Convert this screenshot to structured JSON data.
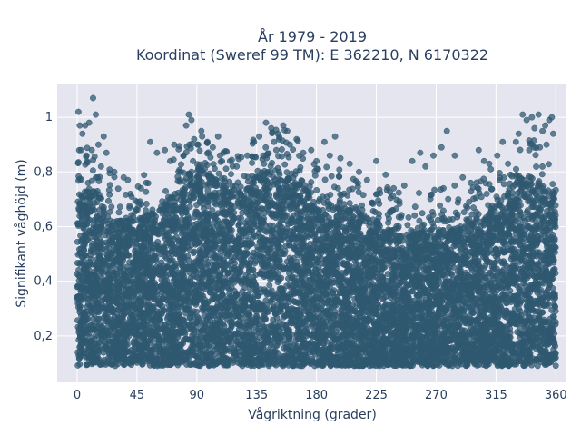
{
  "chart_data": {
    "type": "scatter",
    "title_lines": [
      "År 1979 - 2019",
      "Koordinat (Sweref 99 TM): E 362210, N 6170322"
    ],
    "xlabel": "Vågriktning (grader)",
    "ylabel": "Signifikant våghöjd (m)",
    "xlim": [
      -15,
      368
    ],
    "ylim": [
      0.03,
      1.12
    ],
    "x_ticks": [
      0,
      45,
      90,
      135,
      180,
      225,
      270,
      315,
      360
    ],
    "x_tick_labels": [
      "0",
      "45",
      "90",
      "135",
      "180",
      "225",
      "270",
      "315",
      "360"
    ],
    "y_ticks": [
      0.2,
      0.4,
      0.6,
      0.8,
      1.0
    ],
    "y_tick_labels": [
      "0,2",
      "0,4",
      "0,6",
      "0,8",
      "1"
    ],
    "grid": true,
    "marker_color": "#2f5870",
    "plot_bg": "#e5e5f0",
    "envelope": {
      "x": [
        0,
        10,
        20,
        30,
        45,
        60,
        75,
        85,
        95,
        110,
        125,
        140,
        155,
        170,
        185,
        200,
        215,
        230,
        245,
        260,
        275,
        290,
        305,
        320,
        335,
        345,
        355,
        360
      ],
      "y_top": [
        0.72,
        0.74,
        0.68,
        0.62,
        0.62,
        0.66,
        0.72,
        0.8,
        0.8,
        0.74,
        0.72,
        0.8,
        0.8,
        0.74,
        0.68,
        0.66,
        0.64,
        0.6,
        0.56,
        0.58,
        0.58,
        0.6,
        0.62,
        0.7,
        0.78,
        0.78,
        0.72,
        0.7
      ],
      "y_bottom": 0.09
    },
    "outliers": [
      {
        "x": 1,
        "y": 1.02
      },
      {
        "x": 2,
        "y": 0.97
      },
      {
        "x": 4,
        "y": 0.94
      },
      {
        "x": 6,
        "y": 0.97
      },
      {
        "x": 9,
        "y": 0.98
      },
      {
        "x": 12,
        "y": 1.07
      },
      {
        "x": 14,
        "y": 1.01
      },
      {
        "x": 11,
        "y": 0.88
      },
      {
        "x": 16,
        "y": 0.9
      },
      {
        "x": 18,
        "y": 0.82
      },
      {
        "x": 3,
        "y": 0.88
      },
      {
        "x": 7,
        "y": 0.86
      },
      {
        "x": 22,
        "y": 0.87
      },
      {
        "x": 28,
        "y": 0.8
      },
      {
        "x": 35,
        "y": 0.78
      },
      {
        "x": 40,
        "y": 0.72
      },
      {
        "x": 48,
        "y": 0.74
      },
      {
        "x": 52,
        "y": 0.76
      },
      {
        "x": 55,
        "y": 0.91
      },
      {
        "x": 60,
        "y": 0.87
      },
      {
        "x": 66,
        "y": 0.88
      },
      {
        "x": 70,
        "y": 0.84
      },
      {
        "x": 73,
        "y": 0.9
      },
      {
        "x": 78,
        "y": 0.8
      },
      {
        "x": 80,
        "y": 0.86
      },
      {
        "x": 82,
        "y": 0.97
      },
      {
        "x": 84,
        "y": 1.01
      },
      {
        "x": 86,
        "y": 0.99
      },
      {
        "x": 88,
        "y": 0.92
      },
      {
        "x": 91,
        "y": 0.9
      },
      {
        "x": 94,
        "y": 0.93
      },
      {
        "x": 98,
        "y": 0.91
      },
      {
        "x": 102,
        "y": 0.89
      },
      {
        "x": 106,
        "y": 0.93
      },
      {
        "x": 110,
        "y": 0.87
      },
      {
        "x": 115,
        "y": 0.84
      },
      {
        "x": 120,
        "y": 0.82
      },
      {
        "x": 128,
        "y": 0.86
      },
      {
        "x": 133,
        "y": 0.91
      },
      {
        "x": 137,
        "y": 0.93
      },
      {
        "x": 140,
        "y": 0.86
      },
      {
        "x": 142,
        "y": 0.98
      },
      {
        "x": 146,
        "y": 0.96
      },
      {
        "x": 148,
        "y": 0.91
      },
      {
        "x": 151,
        "y": 0.94
      },
      {
        "x": 155,
        "y": 0.97
      },
      {
        "x": 158,
        "y": 0.95
      },
      {
        "x": 160,
        "y": 0.9
      },
      {
        "x": 165,
        "y": 0.92
      },
      {
        "x": 170,
        "y": 0.87
      },
      {
        "x": 176,
        "y": 0.88
      },
      {
        "x": 180,
        "y": 0.84
      },
      {
        "x": 186,
        "y": 0.91
      },
      {
        "x": 190,
        "y": 0.86
      },
      {
        "x": 194,
        "y": 0.93
      },
      {
        "x": 198,
        "y": 0.85
      },
      {
        "x": 205,
        "y": 0.83
      },
      {
        "x": 212,
        "y": 0.8
      },
      {
        "x": 218,
        "y": 0.77
      },
      {
        "x": 225,
        "y": 0.84
      },
      {
        "x": 232,
        "y": 0.79
      },
      {
        "x": 238,
        "y": 0.74
      },
      {
        "x": 246,
        "y": 0.75
      },
      {
        "x": 252,
        "y": 0.84
      },
      {
        "x": 258,
        "y": 0.87
      },
      {
        "x": 262,
        "y": 0.82
      },
      {
        "x": 268,
        "y": 0.86
      },
      {
        "x": 274,
        "y": 0.89
      },
      {
        "x": 278,
        "y": 0.95
      },
      {
        "x": 284,
        "y": 0.86
      },
      {
        "x": 290,
        "y": 0.78
      },
      {
        "x": 296,
        "y": 0.76
      },
      {
        "x": 302,
        "y": 0.88
      },
      {
        "x": 306,
        "y": 0.84
      },
      {
        "x": 310,
        "y": 0.83
      },
      {
        "x": 316,
        "y": 0.86
      },
      {
        "x": 320,
        "y": 0.91
      },
      {
        "x": 324,
        "y": 0.83
      },
      {
        "x": 330,
        "y": 0.91
      },
      {
        "x": 332,
        "y": 0.94
      },
      {
        "x": 335,
        "y": 1.01
      },
      {
        "x": 338,
        "y": 0.99
      },
      {
        "x": 342,
        "y": 1.0
      },
      {
        "x": 344,
        "y": 0.96
      },
      {
        "x": 347,
        "y": 1.01
      },
      {
        "x": 350,
        "y": 0.95
      },
      {
        "x": 352,
        "y": 0.97
      },
      {
        "x": 355,
        "y": 0.99
      },
      {
        "x": 357,
        "y": 1.0
      },
      {
        "x": 358,
        "y": 0.94
      },
      {
        "x": 353,
        "y": 0.9
      },
      {
        "x": 348,
        "y": 0.89
      },
      {
        "x": 340,
        "y": 0.88
      },
      {
        "x": 326,
        "y": 0.79
      },
      {
        "x": 20,
        "y": 0.93
      }
    ]
  }
}
